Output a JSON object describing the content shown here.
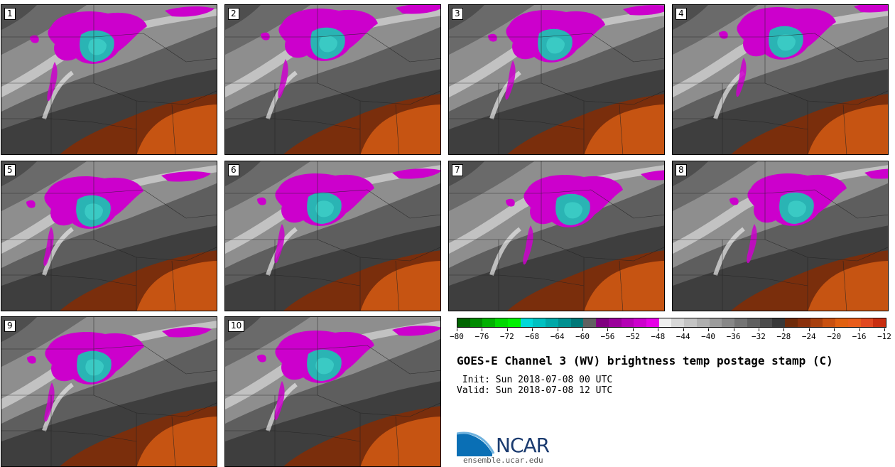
{
  "figure": {
    "title": "GOES-E Channel 3 (WV) brightness temp postage stamp (C)",
    "init_label": " Init: Sun 2018-07-08 00 UTC",
    "valid_label": "Valid: Sun 2018-07-08 12 UTC"
  },
  "panels": [
    {
      "number": "1"
    },
    {
      "number": "2"
    },
    {
      "number": "3"
    },
    {
      "number": "4"
    },
    {
      "number": "5"
    },
    {
      "number": "6"
    },
    {
      "number": "7"
    },
    {
      "number": "8"
    },
    {
      "number": "9"
    },
    {
      "number": "10"
    }
  ],
  "colorbar": {
    "tick_labels": [
      "−80",
      "−76",
      "−72",
      "−68",
      "−64",
      "−60",
      "−56",
      "−52",
      "−48",
      "−44",
      "−40",
      "−36",
      "−32",
      "−28",
      "−24",
      "−20",
      "−16",
      "−12"
    ],
    "colors": [
      "#006400",
      "#008a00",
      "#00b000",
      "#00d800",
      "#00f000",
      "#00d8d8",
      "#00c0c0",
      "#00a8a8",
      "#009090",
      "#007878",
      "#606060",
      "#800080",
      "#9a009a",
      "#b400b4",
      "#cc00cc",
      "#e600e6",
      "#f0f0f0",
      "#d8d8d8",
      "#c4c4c4",
      "#b0b0b0",
      "#9c9c9c",
      "#888888",
      "#747474",
      "#606060",
      "#4c4c4c",
      "#383838",
      "#6e2a0a",
      "#8a300c",
      "#a8400e",
      "#c85010",
      "#e06010",
      "#e85c1a",
      "#e04820",
      "#c82e10"
    ]
  },
  "logo": {
    "name": "NCAR",
    "url": "ensemble.ucar.edu"
  }
}
